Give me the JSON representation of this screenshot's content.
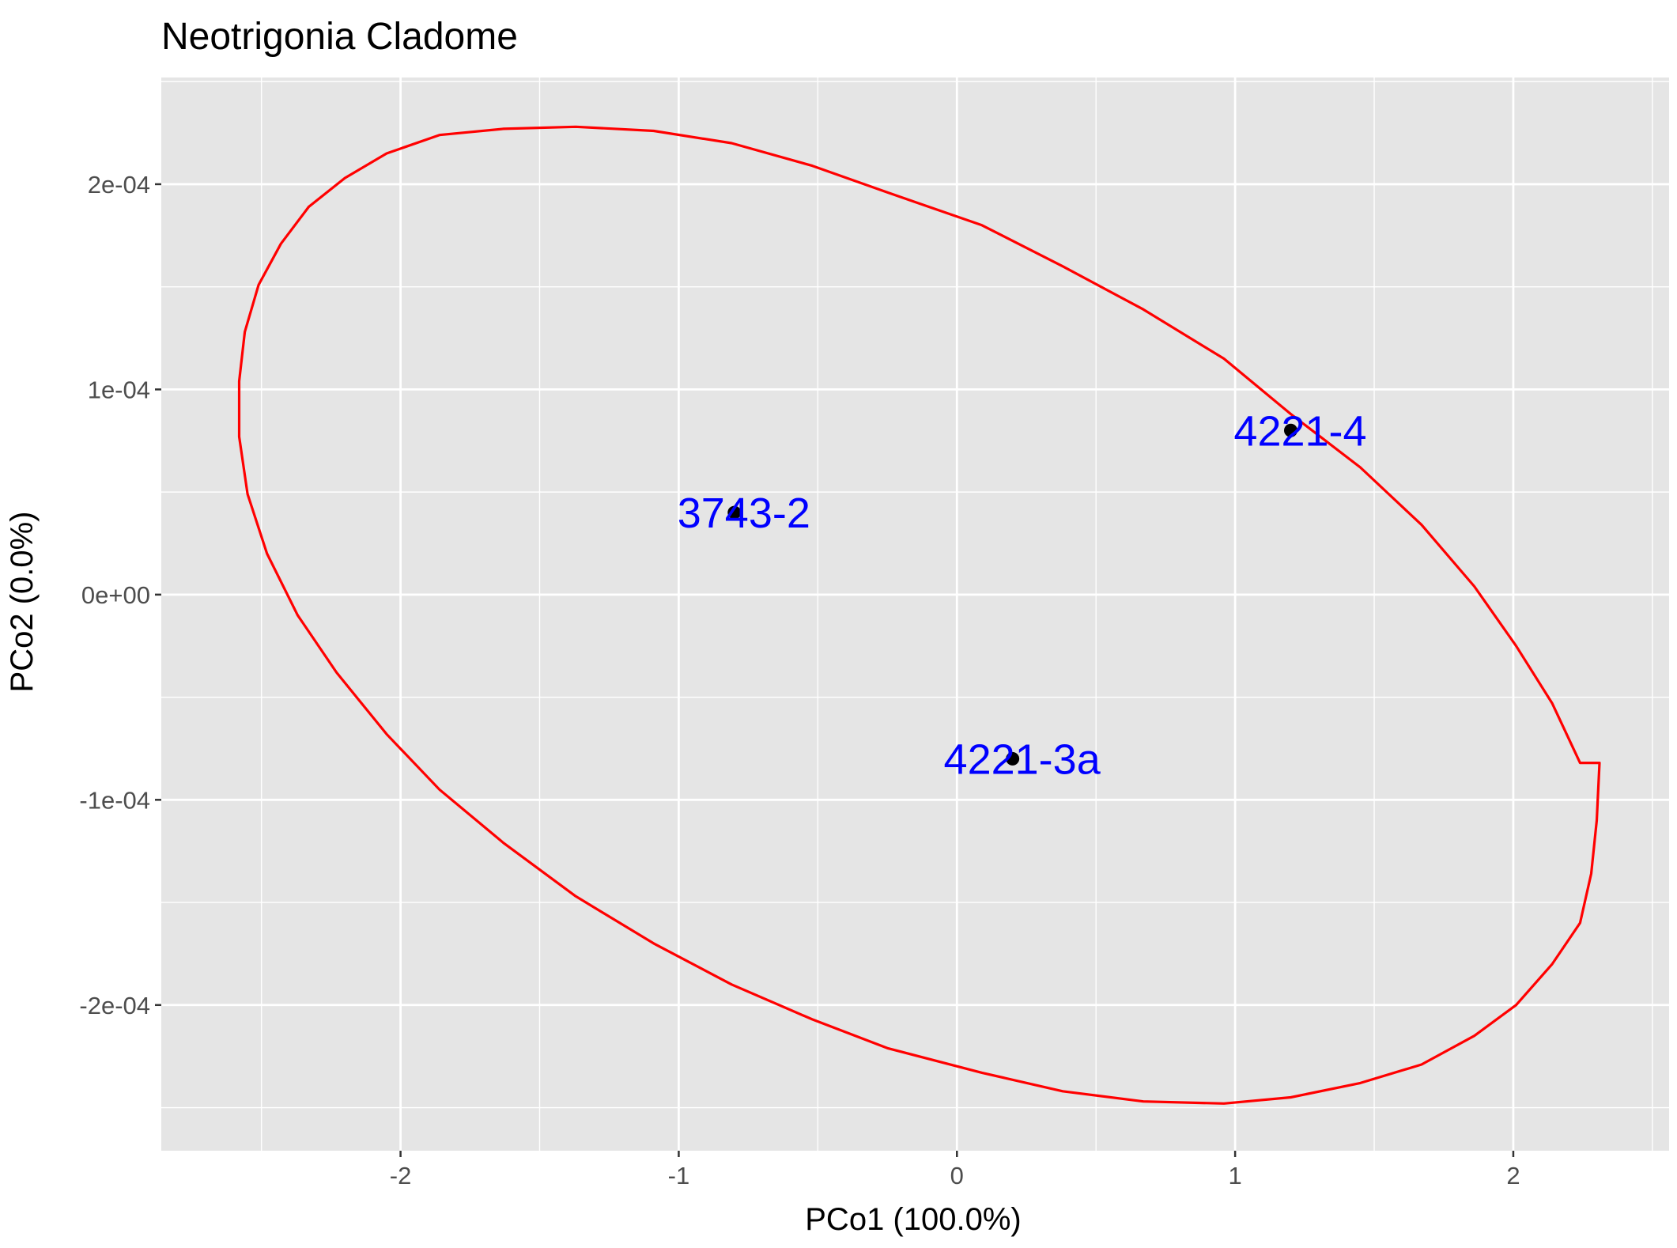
{
  "chart_data": {
    "type": "scatter",
    "title": "Neotrigonia Cladome",
    "xlabel": "PCo1 (100.0%)",
    "ylabel": "PCo2 (0.0%)",
    "xlim": [
      -2.86,
      2.56
    ],
    "ylim": [
      -0.000271,
      0.000252
    ],
    "x_ticks": [
      -2,
      -1,
      0,
      1,
      2
    ],
    "x_tick_labels": [
      "-2",
      "-1",
      "0",
      "1",
      "2"
    ],
    "y_ticks": [
      -0.0002,
      -0.0001,
      0,
      0.0001,
      0.0002
    ],
    "y_tick_labels": [
      "-2e-04",
      "-1e-04",
      "0e+00",
      "1e-04",
      "2e-04"
    ],
    "grid": true,
    "background_color": "#e5e5e5",
    "point_color": "#000000",
    "label_color": "#0000ff",
    "ellipse_color": "#ff0000",
    "points": [
      {
        "label": "3743-2",
        "x": -0.8,
        "y": 4e-05
      },
      {
        "label": "4221-4",
        "x": 1.2,
        "y": 8e-05
      },
      {
        "label": "4221-3a",
        "x": 0.2,
        "y": -8e-05
      }
    ],
    "ellipse": {
      "center": [
        0.2,
        0.0
      ],
      "x": [
        2.31,
        2.3,
        2.28,
        2.24,
        2.14,
        2.01,
        1.86,
        1.67,
        1.45,
        1.2,
        0.96,
        0.67,
        0.38,
        0.09,
        -0.25,
        -0.52,
        -0.81,
        -1.09,
        -1.37,
        -1.63,
        -1.86,
        -2.05,
        -2.23,
        -2.37,
        -2.48,
        -2.55,
        -2.58,
        -2.58,
        -2.56,
        -2.51,
        -2.43,
        -2.33,
        -2.2,
        -2.05,
        -1.86,
        -1.63,
        -1.37,
        -1.09,
        -0.81,
        -0.52,
        -0.25,
        0.09,
        0.38,
        0.67,
        0.96,
        1.2,
        1.45,
        1.67,
        1.86,
        2.01,
        2.14,
        2.24,
        2.31
      ],
      "y": [
        -8.2e-05,
        -0.00011,
        -0.000136,
        -0.00016,
        -0.00018,
        -0.0002,
        -0.000215,
        -0.000229,
        -0.000238,
        -0.000245,
        -0.000248,
        -0.000247,
        -0.000242,
        -0.000233,
        -0.000221,
        -0.000207,
        -0.00019,
        -0.00017,
        -0.000147,
        -0.000121,
        -9.5e-05,
        -6.8e-05,
        -3.8e-05,
        -1e-05,
        2e-05,
        4.9e-05,
        7.7e-05,
        0.000104,
        0.000128,
        0.000151,
        0.000171,
        0.000189,
        0.000203,
        0.000215,
        0.000224,
        0.000227,
        0.000228,
        0.000226,
        0.00022,
        0.000209,
        0.000196,
        0.00018,
        0.00016,
        0.000139,
        0.000115,
        8.8e-05,
        6.2e-05,
        3.4e-05,
        4e-06,
        -2.5e-05,
        -5.3e-05,
        -8.2e-05,
        -8.2e-05
      ]
    }
  }
}
